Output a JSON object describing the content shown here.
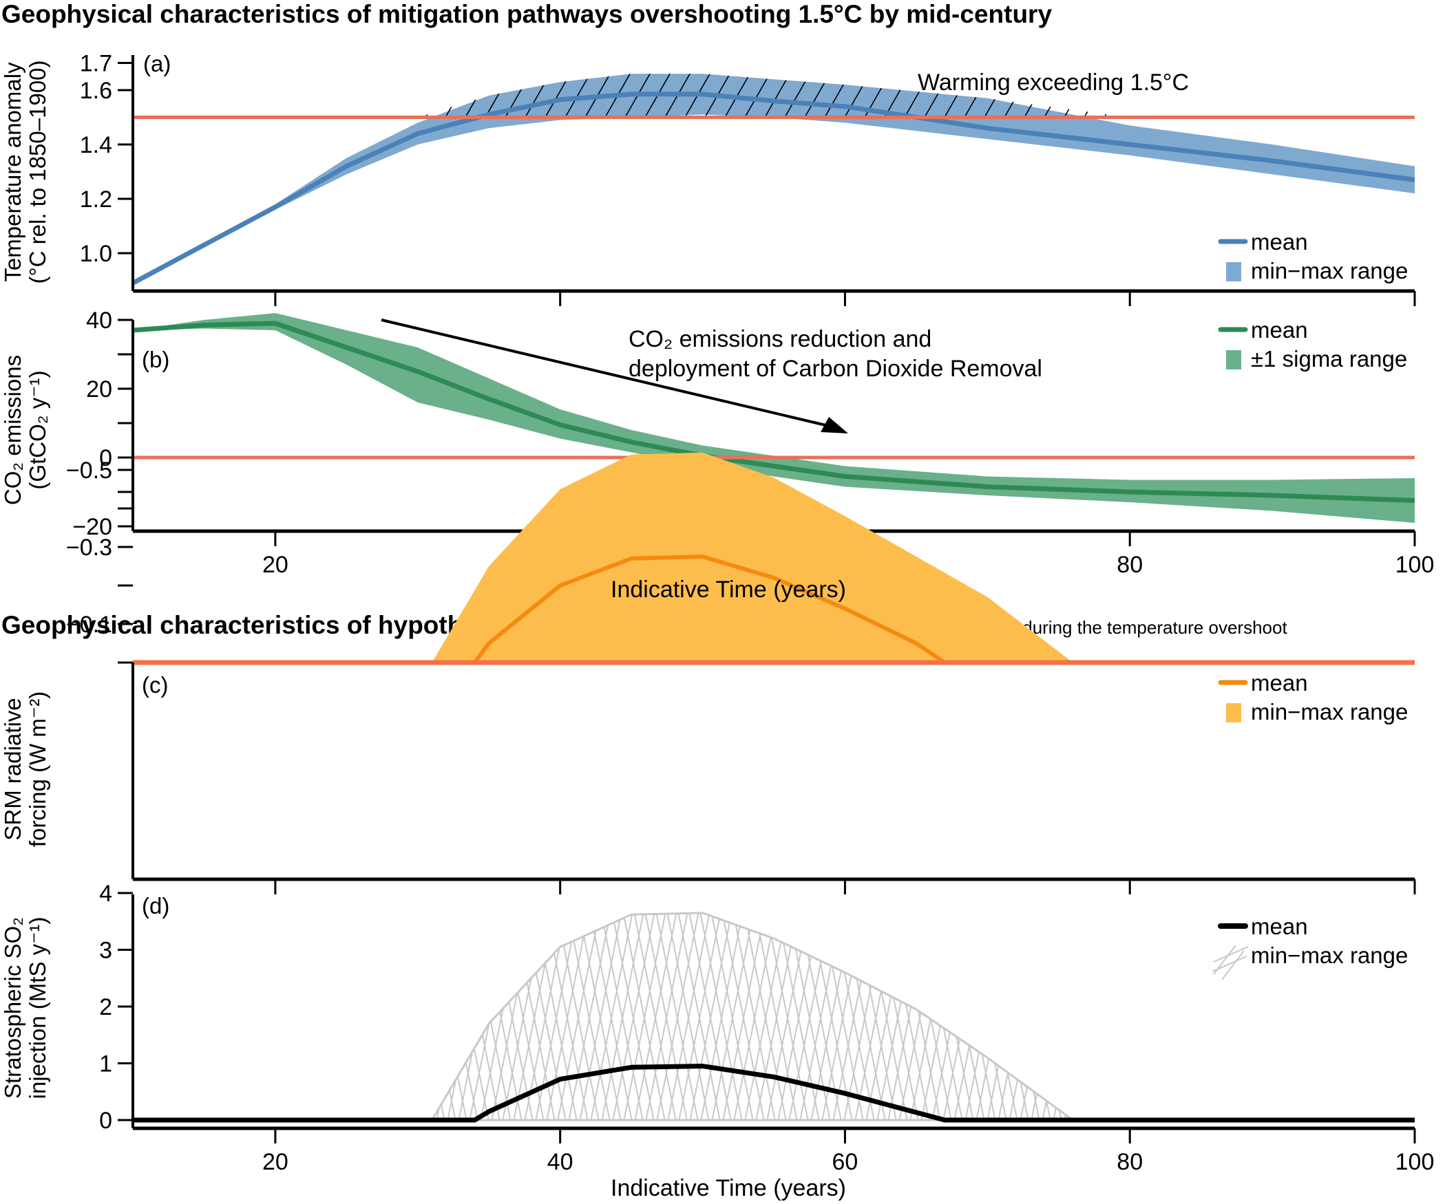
{
  "figure": {
    "section1_title": "Geophysical characteristics of mitigation pathways overshooting 1.5°C by mid-century",
    "section2_title_bold": "Geophysical characteristics of hypothetical SRM deployment",
    "section2_title_rest": "in order to hold warming to 1.5°C during the temperature overshoot",
    "xlabel": "Indicative Time (years)",
    "colors": {
      "threshold": "#e8705a",
      "temp_line": "#4a82b8",
      "temp_band": "#80a9d0",
      "co2_line": "#2e8a55",
      "co2_band": "#6ab08a",
      "srm_line": "#f58a0f",
      "srm_band": "#fdbd4d",
      "srm_top": "#f2714a",
      "so2_line": "#000000",
      "so2_hatch": "#c8c8c8"
    }
  },
  "chart_data": [
    {
      "id": "a",
      "type": "area",
      "panel_label": "(a)",
      "ylabel_line1": "Temperature anomaly",
      "ylabel_line2": "(°C rel. to 1850–1900)",
      "xlim": [
        10,
        100
      ],
      "ylim": [
        0.88,
        1.7
      ],
      "yticks": [
        1.0,
        1.2,
        1.4,
        1.6,
        1.7
      ],
      "ytick_labels": [
        "1.0",
        "1.2",
        "1.4",
        "1.6",
        "1.7"
      ],
      "xticks": [
        20,
        40,
        60,
        80,
        100
      ],
      "threshold": 1.5,
      "annotation": "Warming exceeding 1.5°C",
      "legend": [
        "mean",
        "min−max range"
      ],
      "legend_position": "bottom-right",
      "x": [
        10,
        15,
        20,
        25,
        30,
        35,
        40,
        45,
        50,
        55,
        60,
        70,
        80,
        90,
        100
      ],
      "series": [
        {
          "name": "mean",
          "values": [
            0.89,
            1.03,
            1.17,
            1.32,
            1.44,
            1.51,
            1.565,
            1.585,
            1.585,
            1.56,
            1.54,
            1.46,
            1.4,
            1.34,
            1.27
          ]
        },
        {
          "name": "max",
          "values": [
            0.89,
            1.03,
            1.18,
            1.35,
            1.48,
            1.58,
            1.63,
            1.66,
            1.66,
            1.64,
            1.62,
            1.57,
            1.47,
            1.4,
            1.32
          ]
        },
        {
          "name": "min",
          "values": [
            0.89,
            1.03,
            1.16,
            1.29,
            1.4,
            1.46,
            1.49,
            1.5,
            1.51,
            1.5,
            1.48,
            1.42,
            1.36,
            1.29,
            1.22
          ]
        }
      ]
    },
    {
      "id": "b",
      "type": "area",
      "panel_label": "(b)",
      "ylabel_line1": "CO₂ emissions",
      "ylabel_line2": "(GtCO₂ y⁻¹)",
      "xlim": [
        10,
        100
      ],
      "ylim": [
        -21.5,
        40
      ],
      "yticks": [
        40,
        30,
        20,
        10,
        0,
        -10,
        -20
      ],
      "ytick_labels": [
        "40",
        "",
        "20",
        "",
        "0",
        "",
        "−20"
      ],
      "xticks": [
        20,
        40,
        60,
        80,
        100
      ],
      "xtick_labels": [
        "20",
        "40",
        "60",
        "80",
        "100"
      ],
      "threshold": 0,
      "annotation_line1": "CO₂ emissions reduction and",
      "annotation_line2": "deployment of Carbon Dioxide Removal",
      "arrow_from": [
        26,
        39
      ],
      "arrow_to": [
        60,
        5.5
      ],
      "legend": [
        "mean",
        "±1 sigma range"
      ],
      "legend_position": "top-right",
      "x": [
        10,
        15,
        20,
        25,
        30,
        35,
        40,
        45,
        50,
        55,
        60,
        70,
        80,
        90,
        100
      ],
      "series": [
        {
          "name": "mean",
          "values": [
            37,
            38.5,
            39,
            32,
            25,
            17,
            9.5,
            4.5,
            0.5,
            -2.5,
            -5.5,
            -8.5,
            -10,
            -11,
            -12.5
          ]
        },
        {
          "name": "upper",
          "values": [
            37,
            40,
            42,
            37,
            32,
            23,
            14,
            8,
            3.5,
            0.5,
            -2.5,
            -5.5,
            -6.5,
            -6.5,
            -6
          ]
        },
        {
          "name": "lower",
          "values": [
            37,
            37.5,
            37,
            27,
            16,
            11,
            5.5,
            1.5,
            -2.5,
            -5.5,
            -8.5,
            -11,
            -13,
            -15.5,
            -19
          ]
        }
      ]
    },
    {
      "id": "c",
      "type": "area",
      "panel_label": "(c)",
      "ylabel_line1": "SRM radiative",
      "ylabel_line2": "forcing  (W m⁻²)",
      "xlim": [
        10,
        100
      ],
      "ylim": [
        -0.565,
        0
      ],
      "yticks": [
        0,
        -0.1,
        -0.2,
        -0.3,
        -0.4,
        -0.5
      ],
      "ytick_labels": [
        "",
        "−0.1",
        "",
        "−0.3",
        "",
        "−0.5"
      ],
      "xticks": [
        20,
        40,
        60,
        80,
        100
      ],
      "legend": [
        "mean",
        "min−max range"
      ],
      "legend_position": "top-right",
      "mean": {
        "x": [
          10,
          34,
          35,
          40,
          45,
          50,
          55,
          60,
          65,
          67,
          100
        ],
        "y": [
          0,
          0,
          -0.05,
          -0.2,
          -0.27,
          -0.275,
          -0.22,
          -0.14,
          -0.05,
          0,
          0
        ]
      },
      "min": {
        "x": [
          31,
          35,
          40,
          45,
          50,
          55,
          60,
          70,
          76
        ],
        "y": [
          0,
          -0.25,
          -0.45,
          -0.54,
          -0.545,
          -0.48,
          -0.38,
          -0.17,
          0
        ]
      }
    },
    {
      "id": "d",
      "type": "area",
      "panel_label": "(d)",
      "ylabel_line1": "Stratospheric SO₂",
      "ylabel_line2": "injection (MtS y⁻¹)",
      "xlim": [
        10,
        100
      ],
      "ylim": [
        -0.15,
        4
      ],
      "yticks": [
        0,
        1,
        2,
        3,
        4
      ],
      "ytick_labels": [
        "0",
        "1",
        "2",
        "3",
        "4"
      ],
      "xticks": [
        20,
        40,
        60,
        80,
        100
      ],
      "xtick_labels": [
        "20",
        "40",
        "60",
        "80",
        "100"
      ],
      "legend": [
        "mean",
        "min−max range"
      ],
      "legend_position": "top-right",
      "mean": {
        "x": [
          10,
          34,
          35,
          40,
          45,
          50,
          55,
          60,
          67,
          100
        ],
        "y": [
          0,
          0,
          0.15,
          0.72,
          0.93,
          0.95,
          0.76,
          0.47,
          0,
          0
        ]
      },
      "max": {
        "x": [
          31,
          35,
          40,
          45,
          50,
          55,
          60,
          65,
          70,
          76
        ],
        "y": [
          0,
          1.7,
          3.05,
          3.62,
          3.65,
          3.2,
          2.6,
          1.95,
          1.1,
          0
        ]
      }
    }
  ]
}
